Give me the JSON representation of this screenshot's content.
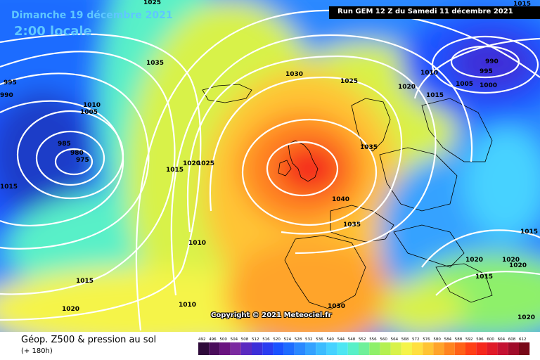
{
  "header": {
    "date": "Dimanche 19 décembre 2021",
    "time": "2:00 locale",
    "run": "Run GEM 12 Z du Samedi 11 décembre 2021"
  },
  "copyright": "Copyright © 2021 Meteociel.fr",
  "footer": {
    "title": "Géop. Z500 & pression au sol",
    "subtitle": "(+ 180h)"
  },
  "scale": {
    "ticks": [
      "492",
      "496",
      "500",
      "504",
      "508",
      "512",
      "516",
      "520",
      "524",
      "528",
      "532",
      "536",
      "540",
      "544",
      "548",
      "552",
      "556",
      "560",
      "564",
      "568",
      "572",
      "576",
      "580",
      "584",
      "588",
      "592",
      "596",
      "600",
      "604",
      "608",
      "612"
    ],
    "colors": [
      "#2e0a3a",
      "#4a0d5a",
      "#6a1380",
      "#7b2aa0",
      "#5a2ac0",
      "#3c2fd8",
      "#2a3cf0",
      "#1a52ff",
      "#1e6cff",
      "#2a88ff",
      "#34a2ff",
      "#3cbcff",
      "#46d2ff",
      "#4ee6f2",
      "#58f0c8",
      "#6ef09a",
      "#8ef06a",
      "#b4f050",
      "#d8f24a",
      "#f5f44a",
      "#ffe040",
      "#ffc434",
      "#ffa42a",
      "#ff8420",
      "#ff6218",
      "#ff4016",
      "#f5281c",
      "#e01a28",
      "#c41232",
      "#a00c2a",
      "#780818"
    ]
  },
  "isobar_labels": [
    "1035",
    "1030",
    "1025",
    "1010",
    "1015",
    "1020",
    "1005",
    "995",
    "990",
    "1000",
    "1010",
    "1005",
    "995",
    "990",
    "985",
    "980",
    "975",
    "1015",
    "1015",
    "1020",
    "1025",
    "1035",
    "1040",
    "1035",
    "1010",
    "1015",
    "1010",
    "1020",
    "1030",
    "1020",
    "1015",
    "1015",
    "1020",
    "1020",
    "1015",
    "1020",
    "1025"
  ]
}
